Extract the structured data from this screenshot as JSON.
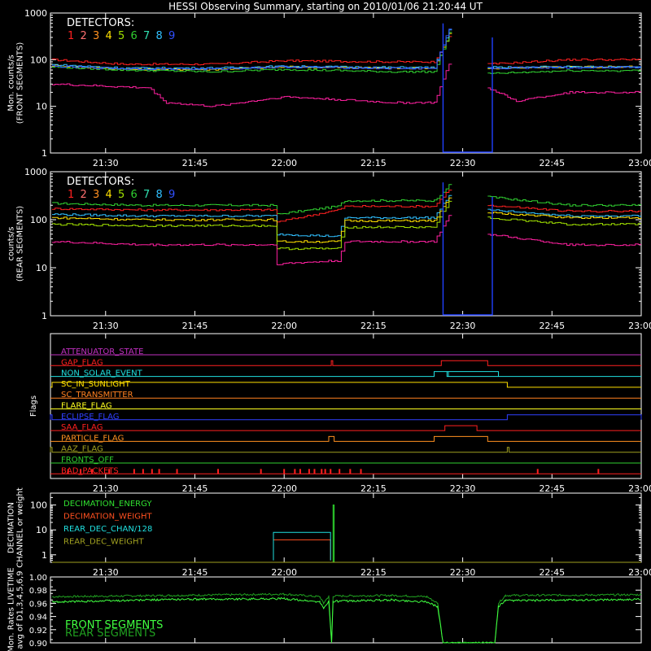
{
  "title": "HESSI Observing Summary, starting on 2010/01/06 21:20:44 UT",
  "colors": {
    "background": "#000000",
    "axis": "#ffffff",
    "det": [
      "#ff2020",
      "#ff7070",
      "#ff9020",
      "#ffe000",
      "#a0e000",
      "#30d030",
      "#30e0b0",
      "#30c0ff",
      "#3050ff"
    ],
    "pink": "#ff20a0",
    "blue": "#2040ff"
  },
  "chart_data": [
    {
      "type": "line",
      "panel": "front",
      "ylabel": "Mon. counts/s (FRONT SEGMENTS)",
      "ylabel_lines": [
        "Mon. counts/s",
        "(FRONT SEGMENTS)"
      ],
      "yscale": "log",
      "ylim": [
        1,
        1000
      ],
      "yticks": [
        "1",
        "10",
        "100",
        "1000"
      ],
      "xticks": [
        "21:30",
        "21:45",
        "22:00",
        "22:15",
        "22:30",
        "22:45",
        "23:00"
      ],
      "legend_title": "DETECTORS:",
      "legend": [
        "1",
        "2",
        "3",
        "4",
        "5",
        "6",
        "7",
        "8",
        "9"
      ],
      "series": [
        {
          "label": "1",
          "color": "#ff2020",
          "points": [
            [
              21.35,
              100
            ],
            [
              21.55,
              80
            ],
            [
              21.8,
              80
            ],
            [
              22.0,
              95
            ],
            [
              22.3,
              90
            ],
            [
              22.42,
              90
            ],
            [
              22.47,
              400
            ],
            [
              22.57,
              80
            ],
            [
              22.8,
              100
            ],
            [
              23.0,
              100
            ]
          ]
        },
        {
          "label": "4",
          "color": "#ffe000",
          "points": [
            [
              21.35,
              75
            ],
            [
              21.55,
              62
            ],
            [
              21.8,
              62
            ],
            [
              22.0,
              70
            ],
            [
              22.3,
              66
            ],
            [
              22.42,
              66
            ],
            [
              22.47,
              500
            ],
            [
              22.57,
              65
            ],
            [
              22.8,
              70
            ],
            [
              23.0,
              70
            ]
          ]
        },
        {
          "label": "6",
          "color": "#30d030",
          "points": [
            [
              21.35,
              70
            ],
            [
              21.55,
              60
            ],
            [
              21.8,
              55
            ],
            [
              22.0,
              62
            ],
            [
              22.3,
              55
            ],
            [
              22.42,
              55
            ],
            [
              22.47,
              550
            ],
            [
              22.57,
              50
            ],
            [
              22.8,
              58
            ],
            [
              23.0,
              58
            ]
          ]
        },
        {
          "label": "8",
          "color": "#30c0ff",
          "points": [
            [
              21.35,
              78
            ],
            [
              21.55,
              66
            ],
            [
              21.8,
              66
            ],
            [
              22.0,
              72
            ],
            [
              22.3,
              68
            ],
            [
              22.42,
              68
            ],
            [
              22.47,
              600
            ],
            [
              22.57,
              68
            ],
            [
              22.8,
              70
            ],
            [
              23.0,
              70
            ]
          ]
        },
        {
          "label": "9",
          "color": "#3050ff",
          "points": [
            [
              21.35,
              72
            ],
            [
              21.55,
              64
            ],
            [
              21.8,
              63
            ],
            [
              22.0,
              70
            ],
            [
              22.3,
              65
            ],
            [
              22.42,
              65
            ],
            [
              22.47,
              700
            ],
            [
              22.57,
              66
            ],
            [
              22.8,
              68
            ],
            [
              23.0,
              68
            ]
          ]
        },
        {
          "label": "2",
          "color": "#ff20a0",
          "points": [
            [
              21.35,
              30
            ],
            [
              21.55,
              26
            ],
            [
              21.62,
              25
            ],
            [
              21.67,
              12
            ],
            [
              21.8,
              10
            ],
            [
              22.0,
              16
            ],
            [
              22.15,
              14
            ],
            [
              22.3,
              12
            ],
            [
              22.42,
              12
            ],
            [
              22.47,
              120
            ],
            [
              22.57,
              25
            ],
            [
              22.65,
              13
            ],
            [
              22.8,
              20
            ],
            [
              23.0,
              20
            ]
          ]
        }
      ]
    },
    {
      "type": "line",
      "panel": "rear",
      "ylabel": "counts/s (REAR SEGMENTS)",
      "ylabel_lines": [
        "counts/s",
        "(REAR SEGMENTS)"
      ],
      "yscale": "log",
      "ylim": [
        1,
        1000
      ],
      "yticks": [
        "1",
        "10",
        "100",
        "1000"
      ],
      "xticks": [
        "21:30",
        "21:45",
        "22:00",
        "22:15",
        "22:30",
        "22:45",
        "23:00"
      ],
      "legend_title": "DETECTORS:",
      "legend": [
        "1",
        "2",
        "3",
        "4",
        "5",
        "6",
        "7",
        "8",
        "9"
      ],
      "series": [
        {
          "label": "6",
          "color": "#30d030",
          "points": [
            [
              21.35,
              220
            ],
            [
              21.6,
              200
            ],
            [
              21.97,
              200
            ],
            [
              21.98,
              130
            ],
            [
              22.15,
              190
            ],
            [
              22.17,
              250
            ],
            [
              22.42,
              250
            ],
            [
              22.47,
              600
            ],
            [
              22.57,
              300
            ],
            [
              22.8,
              200
            ],
            [
              23.0,
              200
            ]
          ]
        },
        {
          "label": "1",
          "color": "#ff2020",
          "points": [
            [
              21.35,
              170
            ],
            [
              21.6,
              160
            ],
            [
              21.97,
              160
            ],
            [
              21.98,
              90
            ],
            [
              22.15,
              160
            ],
            [
              22.17,
              190
            ],
            [
              22.42,
              190
            ],
            [
              22.47,
              500
            ],
            [
              22.57,
              200
            ],
            [
              22.8,
              150
            ],
            [
              23.0,
              150
            ]
          ]
        },
        {
          "label": "8",
          "color": "#30c0ff",
          "points": [
            [
              21.35,
              130
            ],
            [
              21.6,
              120
            ],
            [
              21.97,
              120
            ],
            [
              21.98,
              50
            ],
            [
              22.15,
              45
            ],
            [
              22.17,
              110
            ],
            [
              22.42,
              110
            ],
            [
              22.47,
              400
            ],
            [
              22.57,
              160
            ],
            [
              22.8,
              120
            ],
            [
              23.0,
              120
            ]
          ]
        },
        {
          "label": "4",
          "color": "#ffe000",
          "points": [
            [
              21.35,
              110
            ],
            [
              21.6,
              100
            ],
            [
              21.97,
              100
            ],
            [
              21.98,
              35
            ],
            [
              22.15,
              35
            ],
            [
              22.17,
              95
            ],
            [
              22.42,
              95
            ],
            [
              22.47,
              350
            ],
            [
              22.57,
              140
            ],
            [
              22.8,
              110
            ],
            [
              23.0,
              110
            ]
          ]
        },
        {
          "label": "5",
          "color": "#a0e000",
          "points": [
            [
              21.35,
              80
            ],
            [
              21.6,
              75
            ],
            [
              21.97,
              75
            ],
            [
              21.98,
              25
            ],
            [
              22.15,
              25
            ],
            [
              22.17,
              70
            ],
            [
              22.42,
              70
            ],
            [
              22.47,
              300
            ],
            [
              22.57,
              110
            ],
            [
              22.8,
              80
            ],
            [
              23.0,
              80
            ]
          ]
        },
        {
          "label": "2",
          "color": "#ff20a0",
          "points": [
            [
              21.35,
              35
            ],
            [
              21.6,
              30
            ],
            [
              21.97,
              30
            ],
            [
              21.98,
              12
            ],
            [
              22.15,
              14
            ],
            [
              22.17,
              35
            ],
            [
              22.42,
              35
            ],
            [
              22.47,
              150
            ],
            [
              22.57,
              50
            ],
            [
              22.8,
              30
            ],
            [
              23.0,
              30
            ]
          ]
        }
      ]
    },
    {
      "type": "flags",
      "panel": "flags",
      "ylabel": "Flags",
      "xticks": [
        "21:30",
        "21:45",
        "22:00",
        "22:15",
        "22:30",
        "22:45",
        "23:00"
      ],
      "rows": [
        {
          "name": "ATTENUATOR_STATE",
          "color": "#c030c0",
          "on": []
        },
        {
          "name": "GAP_FLAG",
          "color": "#ff2020",
          "on": [
            [
              22.132,
              22.136
            ],
            [
              22.44,
              22.57
            ]
          ]
        },
        {
          "name": "NON_SOLAR_EVENT",
          "color": "#20e0e0",
          "on": [
            [
              22.42,
              22.6
            ],
            [
              22.456,
              22.46
            ]
          ]
        },
        {
          "name": "SC_IN_SUNLIGHT",
          "color": "#ffe000",
          "on": [
            [
              21.35,
              22.625
            ]
          ]
        },
        {
          "name": "SC_TRANSMITTER",
          "color": "#ff8020",
          "on": []
        },
        {
          "name": "FLARE_FLAG",
          "color": "#ffff20",
          "on": []
        },
        {
          "name": "ECLIPSE_FLAG",
          "color": "#3040ff",
          "on": [
            [
              21.0,
              21.35
            ],
            [
              22.625,
              23.0
            ]
          ]
        },
        {
          "name": "SAA_FLAG",
          "color": "#ff2020",
          "on": [
            [
              22.45,
              22.54
            ]
          ]
        },
        {
          "name": "PARTICLE_FLAG",
          "color": "#ff9020",
          "on": [
            [
              22.125,
              22.14
            ],
            [
              22.42,
              22.57
            ]
          ]
        },
        {
          "name": "AAZ_FLAG",
          "color": "#a0a020",
          "on": [
            [
              21.345,
              21.35
            ],
            [
              22.625,
              22.63
            ]
          ]
        },
        {
          "name": "FRONTS_OFF",
          "color": "#30d030",
          "on": []
        },
        {
          "name": "BAD_PACKETS",
          "color": "#ff2020",
          "ticks": [
            21.395,
            21.43,
            21.462,
            21.51,
            21.58,
            21.605,
            21.63,
            21.65,
            21.7,
            21.815,
            21.935,
            22.0,
            22.03,
            22.045,
            22.07,
            22.085,
            22.105,
            22.115,
            22.13,
            22.155,
            22.185,
            22.215,
            22.71,
            22.88
          ]
        }
      ]
    },
    {
      "type": "line",
      "panel": "decimation",
      "ylabel": "DECIMATION CHANNEL or weight",
      "ylabel_lines": [
        "DECIMATION",
        "CHANNEL or weight"
      ],
      "yscale": "log",
      "ylim": [
        0.5,
        300
      ],
      "yticks": [
        "1",
        "10",
        "100"
      ],
      "xticks": [
        "21:30",
        "21:45",
        "22:00",
        "22:15",
        "22:30",
        "22:45",
        "23:00"
      ],
      "series": [
        {
          "label": "DECIMATION_ENERGY",
          "color": "#30e030",
          "points": [
            [
              22.137,
              0.5
            ],
            [
              22.137,
              100
            ],
            [
              22.14,
              100
            ],
            [
              22.14,
              0.5
            ]
          ]
        },
        {
          "label": "DECIMATION_WEIGHT",
          "color": "#ff5020",
          "points": [
            [
              21.97,
              0.6
            ],
            [
              21.97,
              4
            ],
            [
              22.13,
              4
            ],
            [
              22.13,
              0.6
            ]
          ]
        },
        {
          "label": "REAR_DEC_CHAN/128",
          "color": "#20e0e0",
          "points": [
            [
              21.97,
              0.6
            ],
            [
              21.97,
              8
            ],
            [
              22.13,
              8
            ],
            [
              22.13,
              0.6
            ]
          ]
        },
        {
          "label": "REAR_DEC_WEIGHT",
          "color": "#a0a020",
          "points": [
            [
              21.35,
              0.5
            ],
            [
              23.0,
              0.5
            ]
          ]
        }
      ]
    },
    {
      "type": "line",
      "panel": "livetime",
      "ylabel": "Mon. Rates LIVETIME avg of D1,3,4,5,6,9",
      "ylabel_lines": [
        "Mon. Rates LIVETIME",
        "avg of D1,3,4,5,6,9"
      ],
      "yscale": "linear",
      "ylim": [
        0.9,
        1.0
      ],
      "yticks": [
        "0.90",
        "0.92",
        "0.94",
        "0.96",
        "0.98",
        "1.00"
      ],
      "series": [
        {
          "label": "FRONT SEGMENTS",
          "color": "#40ff40",
          "points": [
            [
              21.35,
              0.962
            ],
            [
              21.7,
              0.966
            ],
            [
              22.0,
              0.967
            ],
            [
              22.1,
              0.962
            ],
            [
              22.11,
              0.952
            ],
            [
              22.125,
              0.963
            ],
            [
              22.133,
              0.9
            ],
            [
              22.137,
              0.963
            ],
            [
              22.3,
              0.965
            ],
            [
              22.4,
              0.962
            ],
            [
              22.43,
              0.955
            ],
            [
              22.445,
              0.9
            ],
            [
              22.59,
              0.9
            ],
            [
              22.6,
              0.955
            ],
            [
              22.62,
              0.964
            ],
            [
              23.0,
              0.966
            ]
          ]
        },
        {
          "label": "REAR SEGMENTS",
          "color": "#20a020",
          "points": [
            [
              21.35,
              0.97
            ],
            [
              21.7,
              0.972
            ],
            [
              22.0,
              0.974
            ],
            [
              22.1,
              0.97
            ],
            [
              22.11,
              0.96
            ],
            [
              22.125,
              0.971
            ],
            [
              22.133,
              0.9
            ],
            [
              22.137,
              0.971
            ],
            [
              22.3,
              0.972
            ],
            [
              22.4,
              0.97
            ],
            [
              22.43,
              0.96
            ],
            [
              22.445,
              0.9
            ],
            [
              22.59,
              0.9
            ],
            [
              22.6,
              0.96
            ],
            [
              22.62,
              0.972
            ],
            [
              23.0,
              0.973
            ]
          ]
        }
      ]
    }
  ]
}
